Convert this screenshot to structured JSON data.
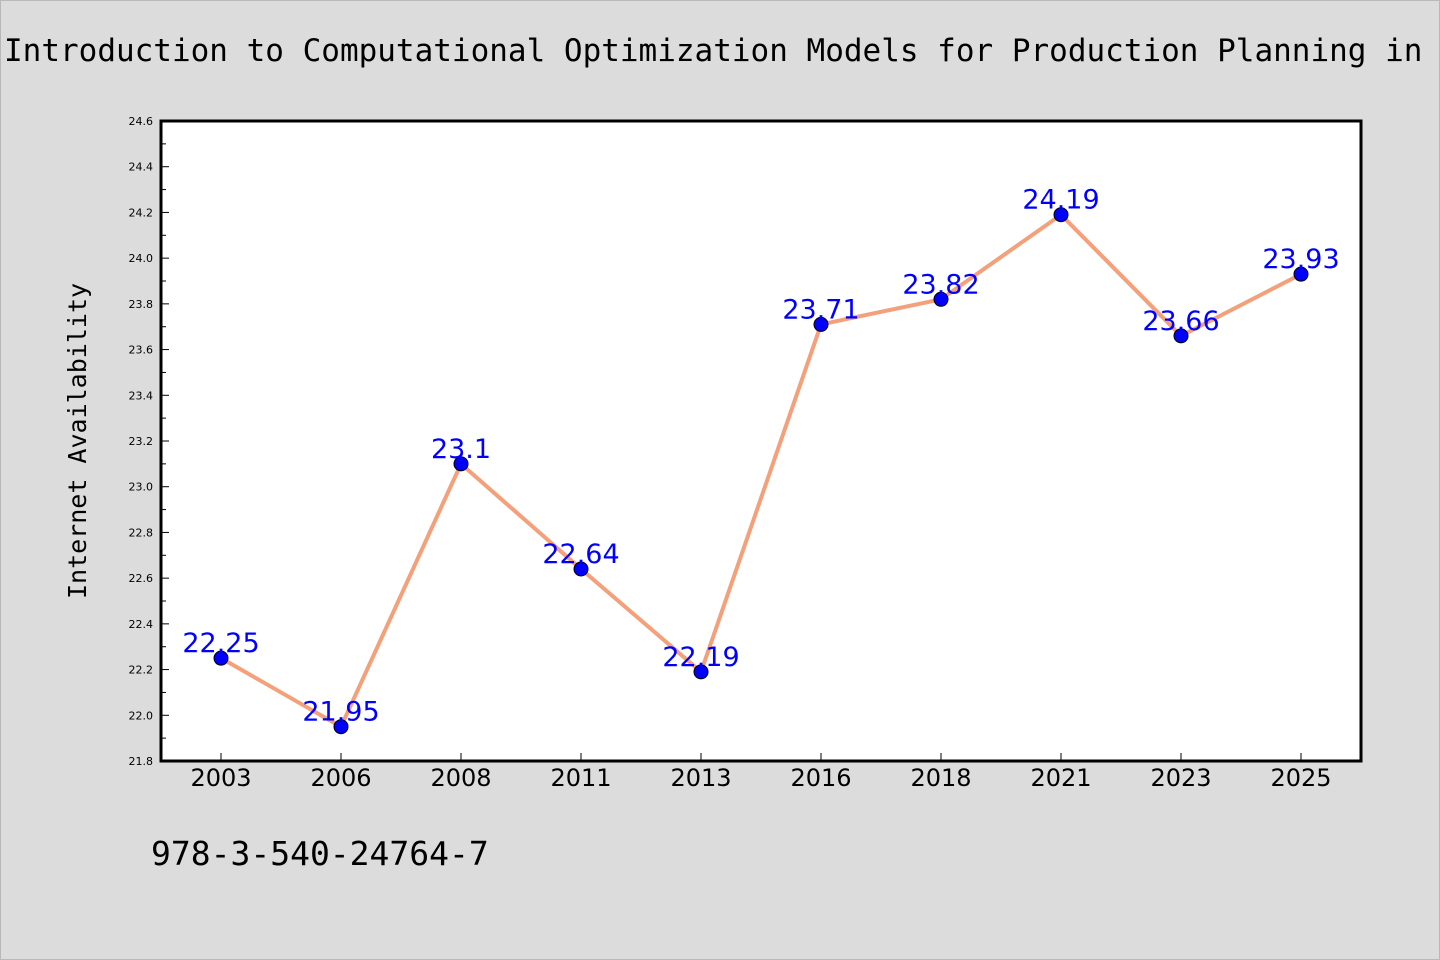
{
  "title": "Introduction to Computational Optimization Models for Production Planning in a Supply Chain",
  "isbn": "978-3-540-24764-7",
  "colors": {
    "background": "#dcdcdc",
    "plot_background": "#ffffff",
    "line": "#f4a07a",
    "marker": "#0000ff",
    "data_label": "#0000ff"
  },
  "chart_data": {
    "type": "line",
    "title": "Introduction to Computational Optimization Models for Production Planning in a Supply Chain",
    "xlabel": "",
    "ylabel": "Internet Availability",
    "categories": [
      "2003",
      "2006",
      "2008",
      "2011",
      "2013",
      "2016",
      "2018",
      "2021",
      "2023",
      "2025"
    ],
    "series": [
      {
        "values": [
          22.25,
          21.95,
          23.1,
          22.64,
          22.19,
          23.71,
          23.82,
          24.19,
          23.66,
          23.93
        ]
      }
    ],
    "data_labels": [
      "22.25",
      "21.95",
      "23.1",
      "22.64",
      "22.19",
      "23.71",
      "23.82",
      "24.19",
      "23.66",
      "23.93"
    ],
    "ylim": [
      21.8,
      24.6
    ],
    "yticks": [
      "21.8",
      "22.0",
      "22.2",
      "22.4",
      "22.6",
      "22.8",
      "23.0",
      "23.2",
      "23.4",
      "23.6",
      "23.8",
      "24.0",
      "24.2",
      "24.4",
      "24.6"
    ],
    "grid": false,
    "legend": "none"
  }
}
